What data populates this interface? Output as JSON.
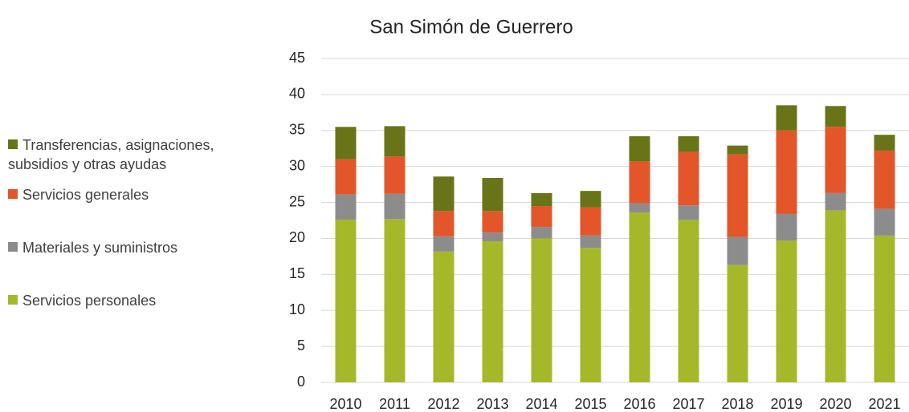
{
  "chart_data": {
    "type": "stacked_bar",
    "title": "San Simón de Guerrero",
    "categories": [
      "2010",
      "2011",
      "2012",
      "2013",
      "2014",
      "2015",
      "2016",
      "2017",
      "2018",
      "2019",
      "2020",
      "2021"
    ],
    "series": [
      {
        "name": "Servicios personales",
        "color": "#a5b82a",
        "values": [
          22.6,
          22.7,
          18.2,
          19.6,
          20.0,
          18.7,
          23.6,
          22.6,
          16.3,
          19.7,
          23.9,
          20.4
        ]
      },
      {
        "name": "Materiales y suministros",
        "color": "#8c8c8c",
        "values": [
          3.5,
          3.5,
          2.1,
          1.2,
          1.6,
          1.7,
          1.3,
          2.0,
          3.9,
          3.7,
          2.4,
          3.7
        ]
      },
      {
        "name": "Servicios generales",
        "color": "#e2562a",
        "values": [
          4.9,
          5.2,
          3.5,
          3.0,
          2.9,
          3.9,
          5.8,
          7.4,
          11.5,
          11.6,
          9.2,
          8.1
        ]
      },
      {
        "name": "Transferencias, asignaciones, subsidios y otras ayudas",
        "color": "#687417",
        "values": [
          4.5,
          4.2,
          4.8,
          4.6,
          1.8,
          2.3,
          3.5,
          2.2,
          1.2,
          3.5,
          2.9,
          2.2
        ]
      }
    ],
    "ylim": [
      0,
      45
    ],
    "yticks": [
      0,
      5,
      10,
      15,
      20,
      25,
      30,
      35,
      40,
      45
    ],
    "grid": true,
    "legend": "left"
  }
}
